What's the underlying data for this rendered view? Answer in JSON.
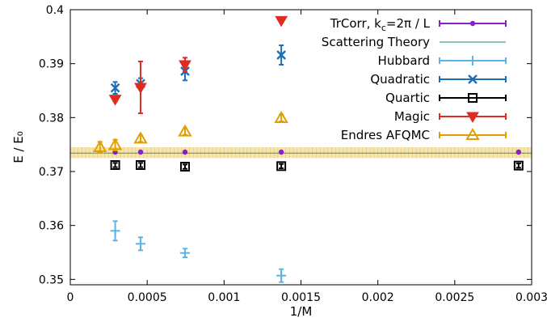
{
  "chart_data": {
    "type": "scatter",
    "xlabel": "1/M",
    "ylabel": "E / E₀",
    "xlim": [
      0,
      0.003
    ],
    "ylim": [
      0.349,
      0.4
    ],
    "xticks": [
      0,
      0.0005,
      0.001,
      0.0015,
      0.002,
      0.0025,
      0.003
    ],
    "xtick_labels": [
      "0",
      "0.0005",
      "0.001",
      "0.0015",
      "0.002",
      "0.0025",
      "0.003"
    ],
    "yticks": [
      0.35,
      0.36,
      0.37,
      0.38,
      0.39,
      0.4
    ],
    "ytick_labels": [
      "0.35",
      "0.36",
      "0.37",
      "0.38",
      "0.39",
      "0.4"
    ],
    "legend_position": "top-right",
    "grid": false,
    "band": {
      "series": "Scattering Theory",
      "value": 0.3734,
      "low": 0.3725,
      "high": 0.3745,
      "fill": "#f5dfa3",
      "line": "#3fa88a"
    },
    "series": [
      {
        "name": "TrCorr, k_c=2π / L",
        "legend_label": "TrCorr, k",
        "legend_sub": "c",
        "legend_tail": "=2π / L",
        "marker": "dot-line",
        "color": "#8b1fc6",
        "points": [
          {
            "x": 0.000292,
            "y": 0.3736
          },
          {
            "x": 0.000457,
            "y": 0.3736
          },
          {
            "x": 0.000746,
            "y": 0.3736
          },
          {
            "x": 0.001372,
            "y": 0.3736
          },
          {
            "x": 0.002915,
            "y": 0.3736
          }
        ]
      },
      {
        "name": "Scattering Theory",
        "legend_label": "Scattering Theory",
        "marker": "line",
        "color": "#3fa88a",
        "points": []
      },
      {
        "name": "Hubbard",
        "legend_label": "Hubbard",
        "marker": "plus",
        "color": "#5bb4e5",
        "points": [
          {
            "x": 0.000292,
            "y": 0.359,
            "err": 0.0018
          },
          {
            "x": 0.000457,
            "y": 0.3566,
            "err": 0.0012
          },
          {
            "x": 0.000746,
            "y": 0.3549,
            "err": 0.0008
          },
          {
            "x": 0.001372,
            "y": 0.3507,
            "err": 0.0012
          }
        ]
      },
      {
        "name": "Quadratic",
        "legend_label": "Quadratic",
        "marker": "x",
        "color": "#1b6fb4",
        "points": [
          {
            "x": 0.000292,
            "y": 0.3855,
            "err": 0.0011
          },
          {
            "x": 0.000457,
            "y": 0.3863,
            "err": 0.001
          },
          {
            "x": 0.000746,
            "y": 0.3886,
            "err": 0.0017
          },
          {
            "x": 0.001372,
            "y": 0.3916,
            "err": 0.0018
          }
        ]
      },
      {
        "name": "Quartic",
        "legend_label": "Quartic",
        "marker": "square",
        "color": "#000000",
        "points": [
          {
            "x": 0.000292,
            "y": 0.3712,
            "err": 0.0004
          },
          {
            "x": 0.000457,
            "y": 0.3712,
            "err": 0.0004
          },
          {
            "x": 0.000746,
            "y": 0.3709,
            "err": 0.0004
          },
          {
            "x": 0.001372,
            "y": 0.371,
            "err": 0.0004
          },
          {
            "x": 0.002915,
            "y": 0.3711,
            "err": 0.0004
          }
        ]
      },
      {
        "name": "Magic",
        "legend_label": "Magic",
        "marker": "triangle-down",
        "color": "#e02b20",
        "points": [
          {
            "x": 0.000292,
            "y": 0.3834,
            "err": 0.0004
          },
          {
            "x": 0.000457,
            "y": 0.3856,
            "err": 0.0048
          },
          {
            "x": 0.000746,
            "y": 0.3898,
            "err": 0.0013
          },
          {
            "x": 0.001372,
            "y": 0.398,
            "err": 0.0004
          }
        ]
      },
      {
        "name": "Endres AFQMC",
        "legend_label": "Endres AFQMC",
        "marker": "triangle-up",
        "color": "#e0a000",
        "points": [
          {
            "x": 0.000193,
            "y": 0.3745,
            "err": 0.001
          },
          {
            "x": 0.000292,
            "y": 0.3749,
            "err": 0.001
          },
          {
            "x": 0.000457,
            "y": 0.3761,
            "err": 0.0006
          },
          {
            "x": 0.000746,
            "y": 0.3774,
            "err": 0.0006
          },
          {
            "x": 0.001372,
            "y": 0.3799,
            "err": 0.0006
          }
        ]
      }
    ]
  }
}
